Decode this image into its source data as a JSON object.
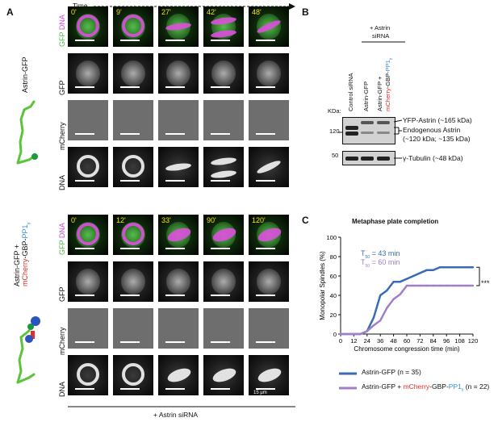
{
  "panelA": {
    "letter": "A",
    "time_label": "Time",
    "top": {
      "construct": "Astrin-GFP",
      "row_labels": {
        "merge_gfp": "GFP",
        "merge_dna": "DNA",
        "gfp": "GFP",
        "mcherry": "mCherry",
        "dna": "DNA"
      },
      "times": [
        "0'",
        "9'",
        "27'",
        "42'",
        "48'"
      ]
    },
    "bottom": {
      "construct_line1": "Astrin-GFP +",
      "construct_line2_mcherry": "mCherry",
      "construct_line2_gbp": "-GBP-",
      "construct_line2_pp1": "PP1",
      "construct_line2_sub": "γ",
      "row_labels": {
        "merge_gfp": "GFP",
        "merge_dna": "DNA",
        "gfp": "GFP",
        "mcherry": "mCherry",
        "dna": "DNA"
      },
      "times": [
        "0'",
        "12'",
        "33'",
        "90'",
        "120'"
      ],
      "scale_label": "15 μm"
    },
    "footer": "+ Astrin siRNA"
  },
  "panelB": {
    "letter": "B",
    "header": "+ Astrin",
    "header2": "siRNA",
    "lanes": [
      "Control siRNA",
      "Astrin-GFP",
      "Astrin-GFP +"
    ],
    "lane3_mcherry": "mCherry",
    "lane3_gbp": "-GBP-",
    "lane3_pp1": "PP1",
    "lane3_sub": "γ",
    "kda": "KDa:",
    "marker_120": "120",
    "marker_50": "50",
    "label_yfp": "YFP-Astrin (~165 kDa)",
    "label_endo1": "Endogenous Astrin",
    "label_endo2": "(~120 kDa; ~135 kDa)",
    "label_tub": "γ-Tubulin (~48 kDa)"
  },
  "panelC": {
    "letter": "C",
    "title": "Metaphase plate completion",
    "t50_1_prefix": "T",
    "t50_1_sub": "50",
    "t50_1_value": "= 43 min",
    "t50_2_prefix": "T",
    "t50_2_sub": "50",
    "t50_2_value": "= 60 min",
    "significance": "***",
    "legend1": "Astrin-GFP (n = 35)",
    "legend2_prefix": "Astrin-GFP + ",
    "legend2_mcherry": "mCherry",
    "legend2_gbp": "-GBP-",
    "legend2_pp1": "PP1",
    "legend2_sub": "γ",
    "legend2_suffix": " (n = 22)",
    "colors": {
      "series1": "#3a6bb5",
      "series2": "#a07fc9",
      "mcherry": "#e0302a",
      "pp1": "#3a8fd0"
    }
  },
  "chart_data": {
    "type": "line",
    "title": "Metaphase plate completion",
    "xlabel": "Chromosome congression time (min)",
    "ylabel": "Monopolar Spindles (%)",
    "xlim": [
      0,
      120
    ],
    "ylim": [
      0,
      100
    ],
    "xticks": [
      0,
      12,
      24,
      36,
      48,
      60,
      72,
      84,
      96,
      108,
      120
    ],
    "yticks": [
      0,
      20,
      40,
      60,
      80,
      100
    ],
    "x": [
      0,
      6,
      12,
      18,
      24,
      30,
      36,
      42,
      48,
      54,
      60,
      66,
      72,
      78,
      84,
      90,
      96,
      102,
      108,
      114,
      120
    ],
    "series": [
      {
        "name": "Astrin-GFP (n = 35)",
        "color": "#3a6bb5",
        "values": [
          0,
          0,
          0,
          0,
          3,
          17,
          40,
          45,
          54,
          54,
          57,
          60,
          63,
          66,
          66,
          69,
          69,
          69,
          69,
          69,
          69
        ]
      },
      {
        "name": "Astrin-GFP + mCherry-GBP-PP1γ (n = 22)",
        "color": "#a07fc9",
        "values": [
          0,
          0,
          0,
          0,
          3,
          9,
          14,
          27,
          36,
          41,
          50,
          50,
          50,
          50,
          50,
          50,
          50,
          50,
          50,
          50,
          50
        ]
      }
    ]
  }
}
